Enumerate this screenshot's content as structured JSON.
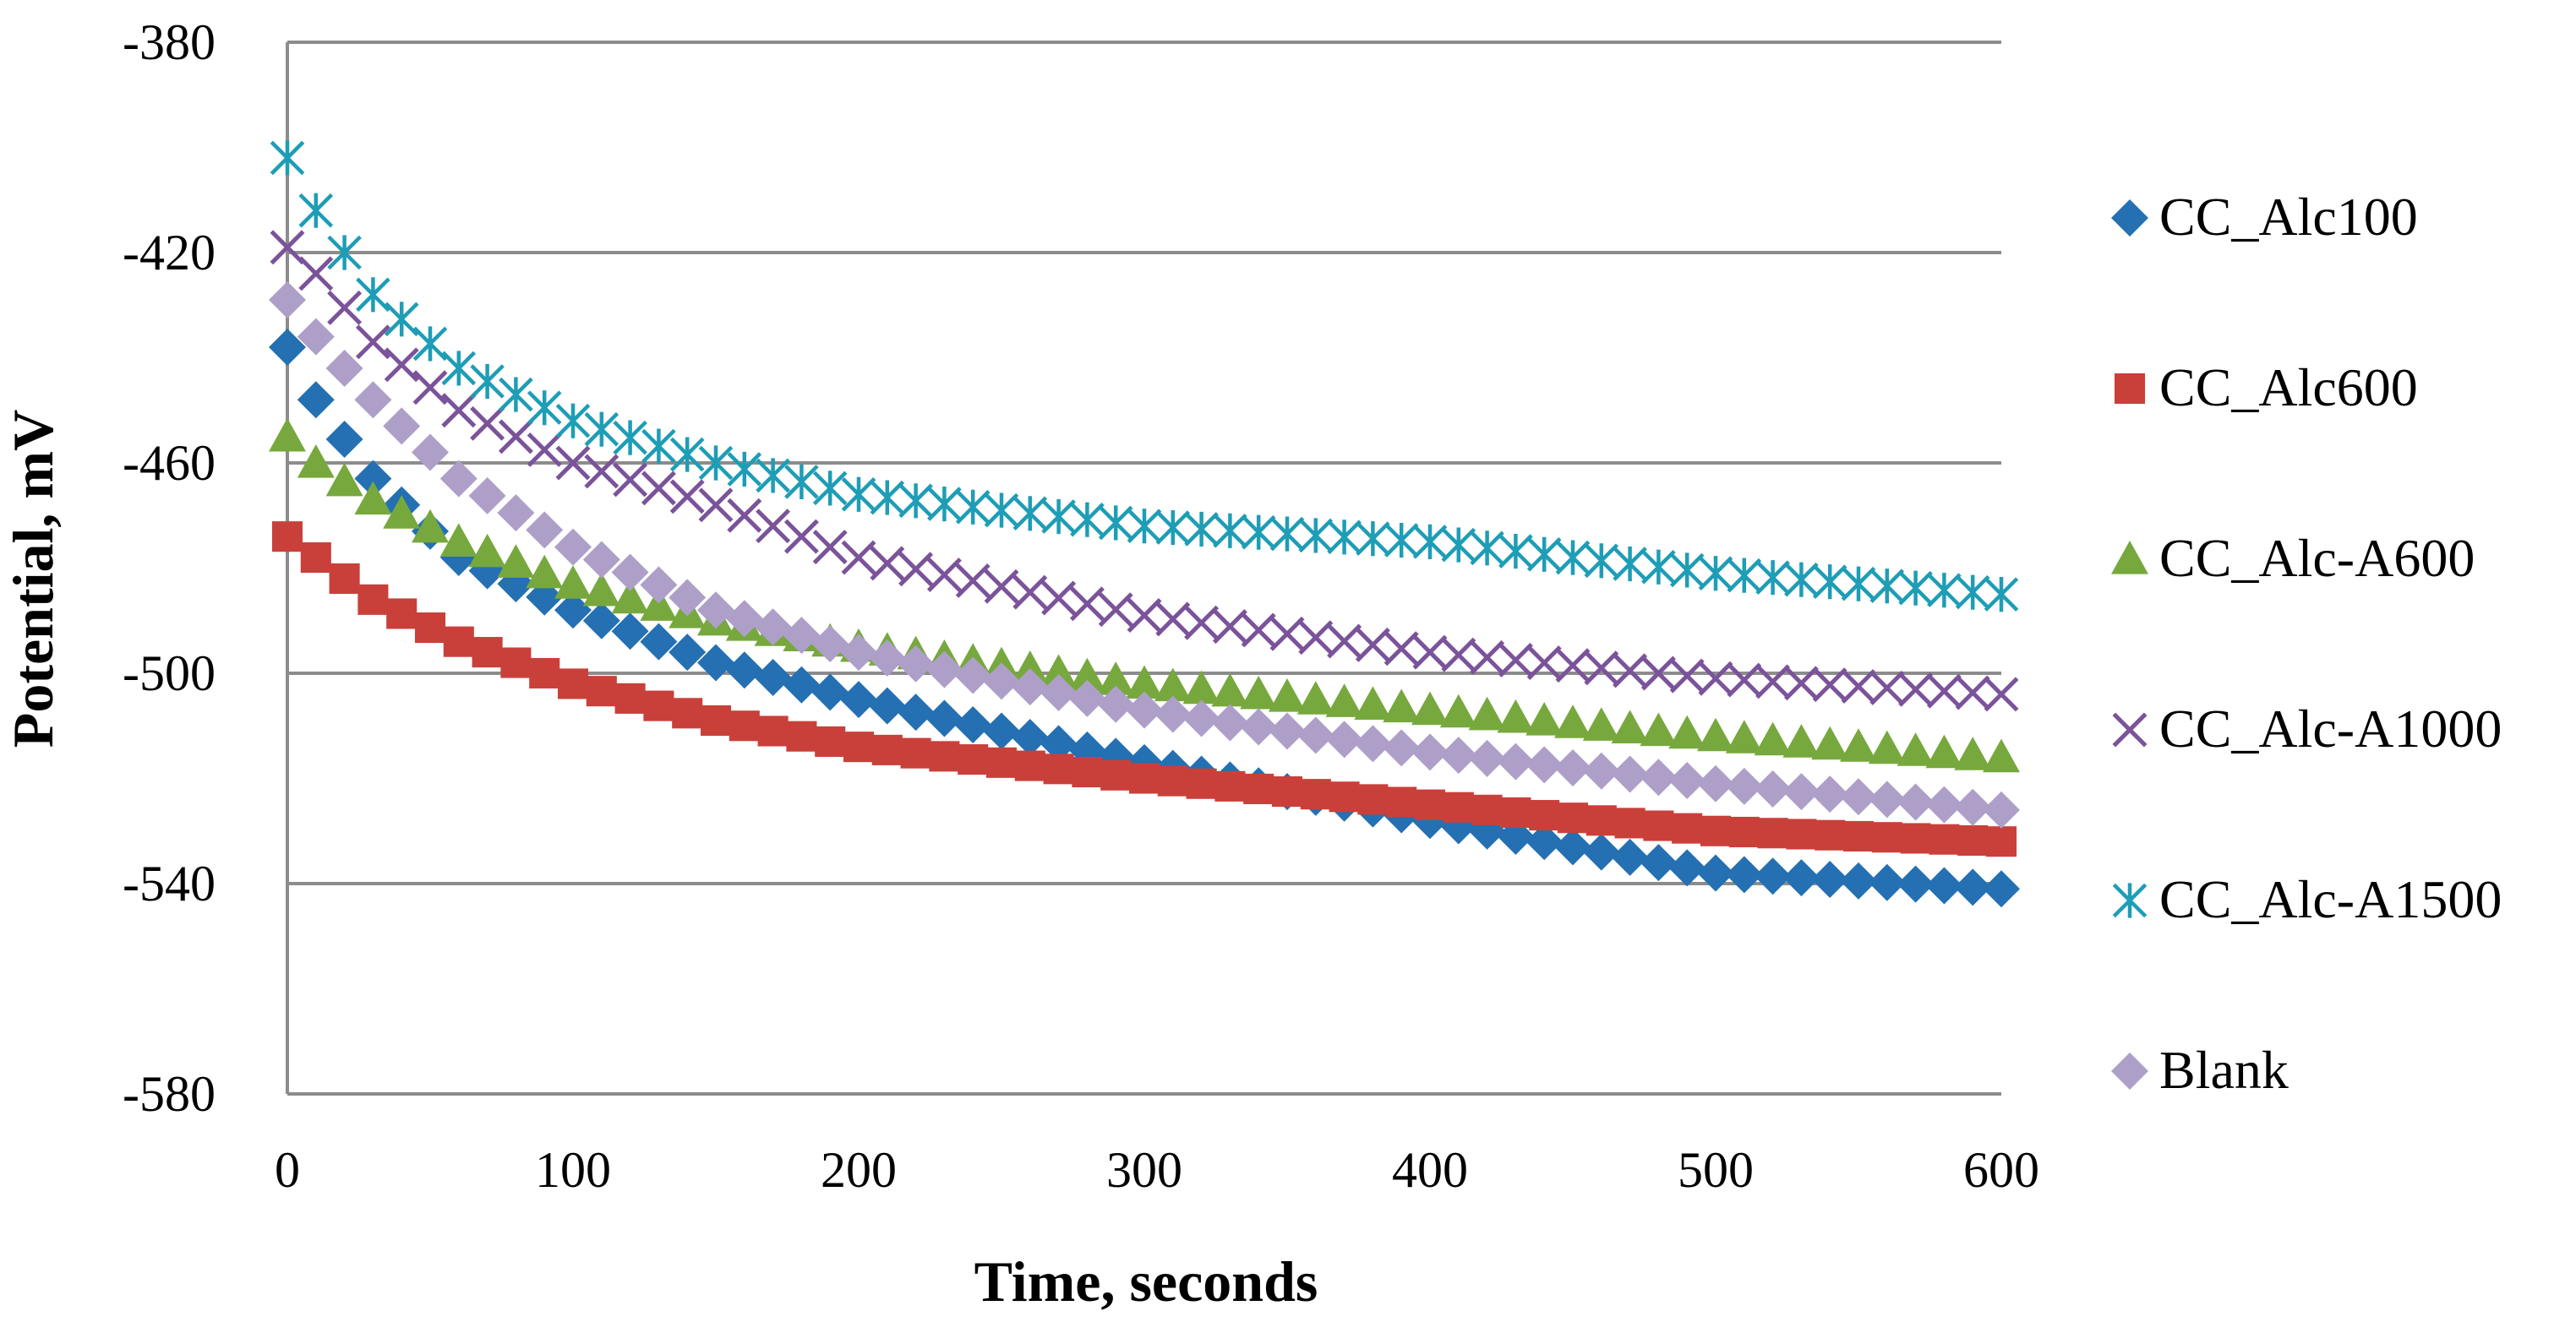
{
  "chart_data": {
    "type": "scatter",
    "title": "",
    "xlabel": "Time, seconds",
    "ylabel": "Potential, mV",
    "xlim": [
      0,
      600
    ],
    "ylim": [
      -580,
      -380
    ],
    "x_ticks": [
      0,
      100,
      200,
      300,
      400,
      500,
      600
    ],
    "y_ticks": [
      -380,
      -420,
      -460,
      -500,
      -540,
      -580
    ],
    "grid": "horizontal",
    "legend_position": "right",
    "sample_interval_s": 10,
    "series": [
      {
        "name": "CC_Alc100",
        "marker": "diamond",
        "color": "#2470B2",
        "anchors_x": [
          0,
          10,
          30,
          60,
          100,
          150,
          200,
          300,
          400,
          500,
          600
        ],
        "anchors_y": [
          -438,
          -448,
          -463,
          -478,
          -488,
          -498,
          -505,
          -517,
          -528,
          -538,
          -541
        ]
      },
      {
        "name": "CC_Alc600",
        "marker": "square",
        "color": "#C9403A",
        "anchors_x": [
          0,
          10,
          30,
          60,
          100,
          150,
          200,
          300,
          400,
          500,
          600
        ],
        "anchors_y": [
          -474,
          -478,
          -486,
          -494,
          -502,
          -509,
          -514,
          -520,
          -525,
          -530,
          -532
        ]
      },
      {
        "name": "CC_Alc-A600",
        "marker": "triangle",
        "color": "#77A83E",
        "anchors_x": [
          0,
          10,
          30,
          60,
          100,
          150,
          200,
          300,
          400,
          500,
          600
        ],
        "anchors_y": [
          -455,
          -460,
          -467,
          -475,
          -483,
          -490,
          -495,
          -502,
          -507,
          -512,
          -516
        ]
      },
      {
        "name": "CC_Alc-A1000",
        "marker": "x",
        "color": "#7B539A",
        "anchors_x": [
          0,
          10,
          30,
          60,
          100,
          150,
          200,
          300,
          400,
          500,
          600
        ],
        "anchors_y": [
          -419,
          -424,
          -437,
          -450,
          -460,
          -468,
          -478,
          -489,
          -496,
          -501,
          -504
        ]
      },
      {
        "name": "CC_Alc-A1500",
        "marker": "asterisk",
        "color": "#1E9DB6",
        "anchors_x": [
          0,
          10,
          30,
          60,
          100,
          150,
          200,
          300,
          400,
          500,
          600
        ],
        "anchors_y": [
          -402,
          -412,
          -428,
          -442,
          -452,
          -460,
          -466,
          -472,
          -475,
          -481,
          -485
        ]
      },
      {
        "name": "Blank",
        "marker": "diamond",
        "color": "#AE9FC9",
        "anchors_x": [
          0,
          10,
          30,
          60,
          100,
          150,
          200,
          300,
          400,
          500,
          600
        ],
        "anchors_y": [
          -429,
          -436,
          -448,
          -463,
          -476,
          -488,
          -496,
          -507,
          -515,
          -521,
          -526
        ]
      }
    ]
  }
}
